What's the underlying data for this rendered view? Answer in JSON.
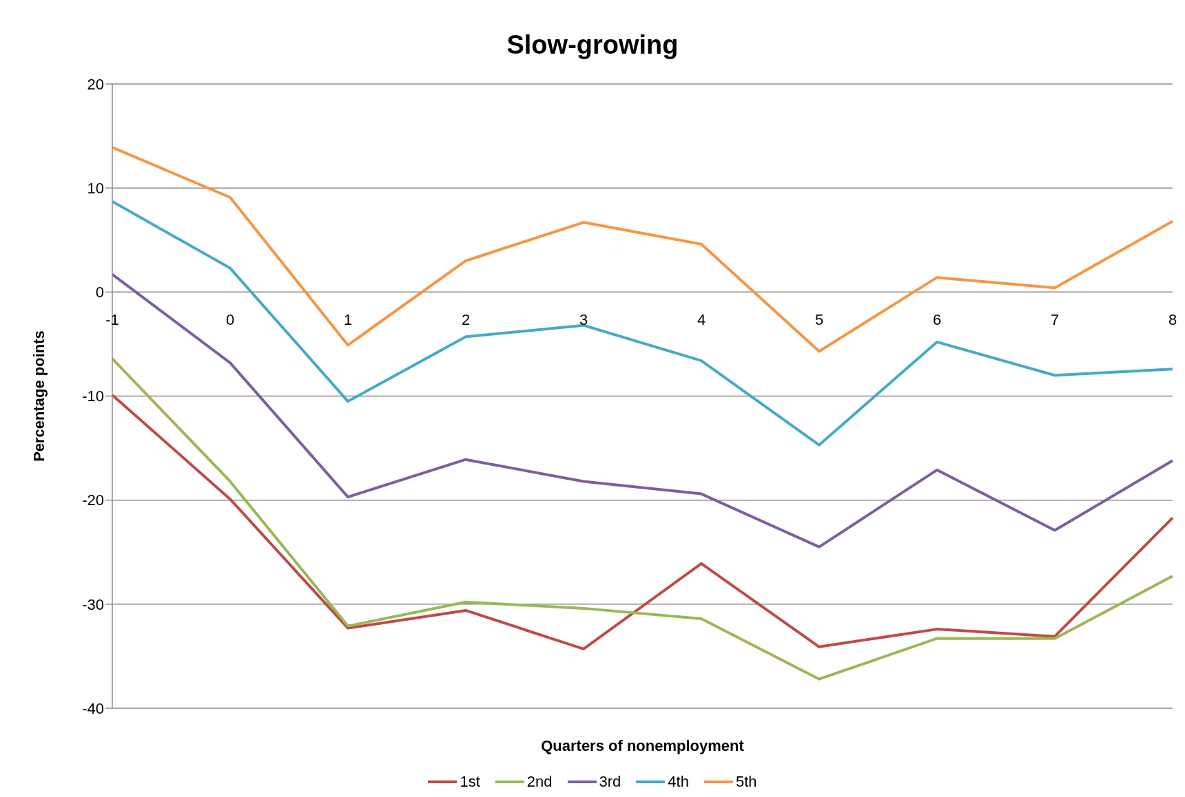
{
  "chart_data": {
    "type": "line",
    "title": "Slow-growing",
    "xlabel": "Quarters of nonemployment",
    "ylabel": "Percentage points",
    "categories": [
      "-1",
      "0",
      "1",
      "2",
      "3",
      "4",
      "5",
      "6",
      "7",
      "8"
    ],
    "series": [
      {
        "name": "1st",
        "color": "#be4b48",
        "values": [
          -9.9,
          -19.9,
          -32.3,
          -30.6,
          -34.3,
          -26.1,
          -34.1,
          -32.4,
          -33.1,
          -21.7
        ]
      },
      {
        "name": "2nd",
        "color": "#98b954",
        "values": [
          -6.4,
          -18.2,
          -32.1,
          -29.8,
          -30.4,
          -31.4,
          -37.2,
          -33.3,
          -33.3,
          -27.3
        ]
      },
      {
        "name": "3rd",
        "color": "#7d5fa0",
        "values": [
          1.7,
          -6.8,
          -19.7,
          -16.1,
          -18.2,
          -19.4,
          -24.5,
          -17.1,
          -22.9,
          -16.2
        ]
      },
      {
        "name": "4th",
        "color": "#46aac5",
        "values": [
          8.7,
          2.3,
          -10.5,
          -4.3,
          -3.2,
          -6.6,
          -14.7,
          -4.8,
          -8.0,
          -7.4
        ]
      },
      {
        "name": "5th",
        "color": "#f59645",
        "values": [
          13.9,
          9.1,
          -5.1,
          3.0,
          6.7,
          4.6,
          -5.7,
          1.4,
          0.4,
          6.8
        ]
      }
    ],
    "ylim": [
      -40,
      20
    ],
    "yticks": [
      -40,
      -30,
      -20,
      -10,
      0,
      10,
      20
    ],
    "grid": "y",
    "legend": "bottom",
    "marker": "none",
    "line_style": "solid"
  }
}
